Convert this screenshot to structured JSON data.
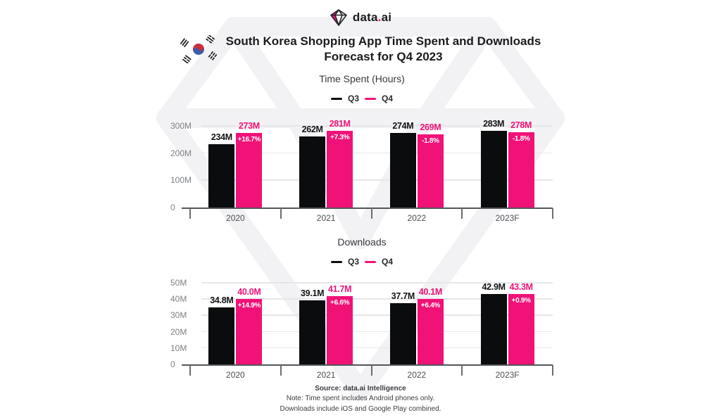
{
  "brand": {
    "word1": "data",
    "dot": ".",
    "word2": "ai"
  },
  "header": {
    "title_line1": "South Korea Shopping App Time Spent and Downloads",
    "title_line2": "Forecast for Q4 2023"
  },
  "legend": {
    "q3": "Q3",
    "q4": "Q4"
  },
  "colors": {
    "q3_bar": "#0B0C0E",
    "q4_bar": "#F11277",
    "gridline": "#E6E6E8",
    "axis": "#53565A",
    "watermark": "#F2F2F4"
  },
  "chart_data": [
    {
      "type": "bar",
      "title": "Time Spent (Hours)",
      "categories": [
        "2020",
        "2021",
        "2022",
        "2023F"
      ],
      "series": [
        {
          "name": "Q3",
          "values": [
            234,
            262,
            274,
            283
          ],
          "labels": [
            "234M",
            "262M",
            "274M",
            "283M"
          ]
        },
        {
          "name": "Q4",
          "values": [
            273,
            281,
            269,
            278
          ],
          "labels": [
            "273M",
            "281M",
            "269M",
            "278M"
          ],
          "pct_labels": [
            "+16.7%",
            "+7.3%",
            "-1.8%",
            "-1.8%"
          ]
        }
      ],
      "ylim": [
        0,
        300
      ],
      "yticks": [
        {
          "label": "0",
          "value": 0
        },
        {
          "label": "100M",
          "value": 100
        },
        {
          "label": "200M",
          "value": 200
        },
        {
          "label": "300M",
          "value": 300
        }
      ],
      "legend_position": "top",
      "grid": true
    },
    {
      "type": "bar",
      "title": "Downloads",
      "categories": [
        "2020",
        "2021",
        "2022",
        "2023F"
      ],
      "series": [
        {
          "name": "Q3",
          "values": [
            34.8,
            39.1,
            37.7,
            42.9
          ],
          "labels": [
            "34.8M",
            "39.1M",
            "37.7M",
            "42.9M"
          ]
        },
        {
          "name": "Q4",
          "values": [
            40.0,
            41.7,
            40.1,
            43.3
          ],
          "labels": [
            "40.0M",
            "41.7M",
            "40.1M",
            "43.3M"
          ],
          "pct_labels": [
            "+14.9%",
            "+6.6%",
            "+6.4%",
            "+0.9%"
          ]
        }
      ],
      "ylim": [
        0,
        50
      ],
      "yticks": [
        {
          "label": "0",
          "value": 0
        },
        {
          "label": "10M",
          "value": 10
        },
        {
          "label": "20M",
          "value": 20
        },
        {
          "label": "30M",
          "value": 30
        },
        {
          "label": "40M",
          "value": 40
        },
        {
          "label": "50M",
          "value": 50
        }
      ],
      "legend_position": "top",
      "grid": true
    }
  ],
  "footer": {
    "source": "Source: data.ai Intelligence",
    "note1": "Note: Time spent includes Android phones only.",
    "note2": "Downloads include iOS and Google Play combined."
  }
}
